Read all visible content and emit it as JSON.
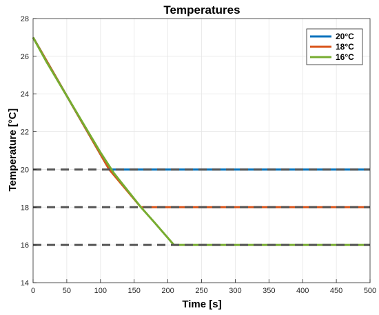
{
  "chart_data": {
    "type": "line",
    "title": "Temperatures",
    "xlabel": "Time [s]",
    "ylabel": "Temperature [°C]",
    "xlim": [
      0,
      500
    ],
    "ylim": [
      14,
      28
    ],
    "xticks": [
      "0",
      "50",
      "100",
      "150",
      "200",
      "250",
      "300",
      "350",
      "400",
      "450",
      "500"
    ],
    "yticks": [
      "14",
      "16",
      "18",
      "20",
      "22",
      "24",
      "26",
      "28"
    ],
    "grid": true,
    "legend_position": "top-right",
    "series": [
      {
        "name": "20°C",
        "color": "#0072BD",
        "x": [
          0,
          113,
          500
        ],
        "y": [
          27,
          20,
          20
        ]
      },
      {
        "name": "18°C",
        "color": "#D95319",
        "x": [
          0,
          113,
          160,
          500
        ],
        "y": [
          27,
          20,
          18,
          18
        ]
      },
      {
        "name": "16°C",
        "color": "#77AC30",
        "x": [
          0,
          20,
          40,
          60,
          80,
          100,
          120,
          140,
          160,
          180,
          209,
          500
        ],
        "y": [
          27,
          25.7,
          24.5,
          23.3,
          22.1,
          20.9,
          19.8,
          18.9,
          18.0,
          17.2,
          16,
          16
        ]
      }
    ],
    "reference_lines": [
      {
        "y": 20,
        "x": [
          0,
          500
        ],
        "color": "#555555"
      },
      {
        "y": 18,
        "x": [
          0,
          500
        ],
        "color": "#555555"
      },
      {
        "y": 16,
        "x": [
          0,
          500
        ],
        "color": "#555555"
      }
    ]
  }
}
